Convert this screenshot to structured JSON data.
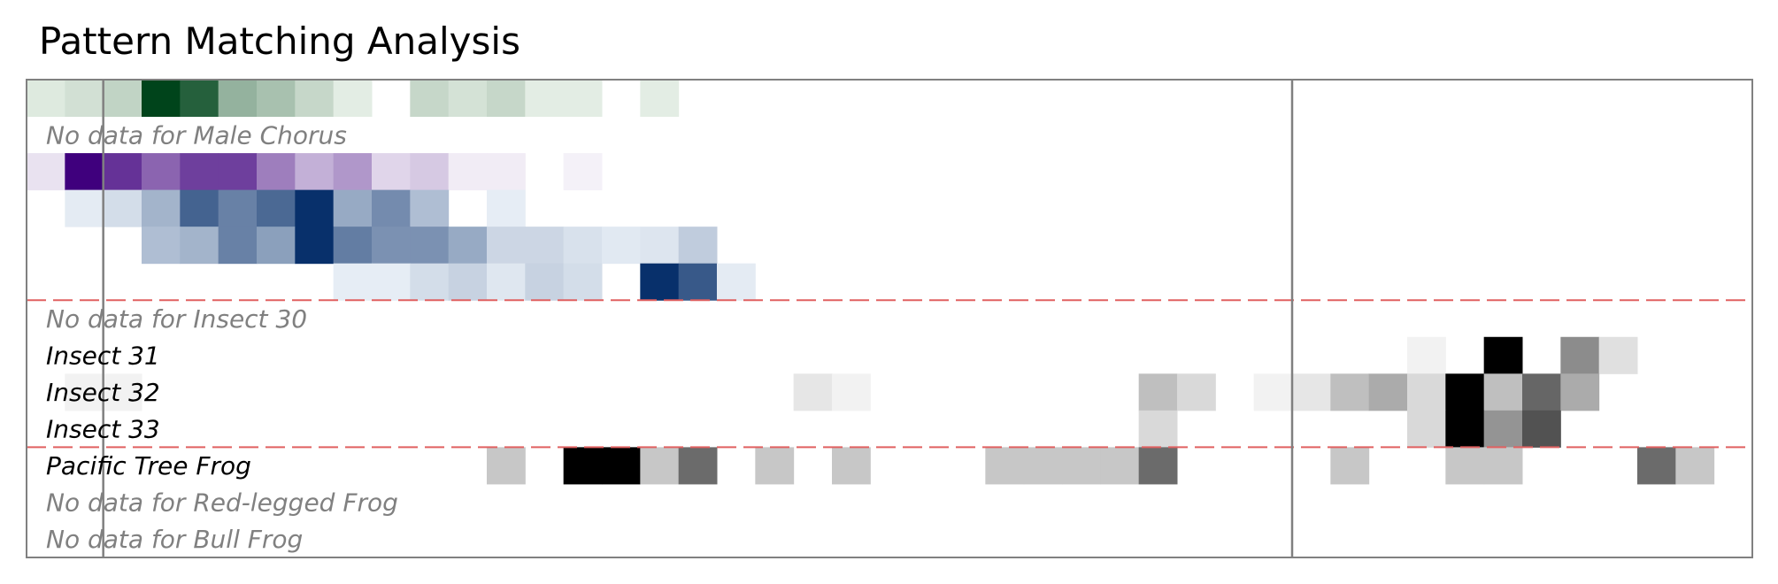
{
  "chart_data": {
    "type": "heatmap",
    "title": "Pattern Matching Analysis",
    "n_columns": 45,
    "grid": false,
    "rows": [
      {
        "label": "",
        "has_data": true,
        "colormap": "green",
        "values": [
          0.1,
          0.15,
          0.22,
          1,
          0.85,
          0.4,
          0.32,
          0.2,
          0.08,
          0,
          0.2,
          0.14,
          0.2,
          0.08,
          0.08,
          0,
          0.08,
          0,
          0,
          0,
          0,
          0,
          0,
          0,
          0,
          0,
          0,
          0,
          0,
          0,
          0,
          0,
          0,
          0,
          0,
          0,
          0,
          0,
          0,
          0,
          0,
          0,
          0,
          0,
          0
        ]
      },
      {
        "label": "No data for Male Chorus",
        "has_data": false,
        "colormap": "none",
        "values": []
      },
      {
        "label": "",
        "has_data": true,
        "colormap": "purple",
        "values": [
          0.1,
          1,
          0.8,
          0.6,
          0.75,
          0.75,
          0.5,
          0.3,
          0.4,
          0.15,
          0.2,
          0.06,
          0.06,
          0,
          0.04,
          0,
          0,
          0,
          0,
          0,
          0,
          0,
          0,
          0,
          0,
          0,
          0,
          0,
          0,
          0,
          0,
          0,
          0,
          0,
          0,
          0,
          0,
          0,
          0,
          0,
          0,
          0,
          0,
          0,
          0
        ]
      },
      {
        "label": "",
        "has_data": true,
        "colormap": "blue",
        "values": [
          0,
          0.08,
          0.15,
          0.35,
          0.75,
          0.6,
          0.72,
          1,
          0.4,
          0.55,
          0.3,
          0,
          0.07,
          0,
          0,
          0,
          0,
          0,
          0,
          0,
          0,
          0,
          0,
          0,
          0,
          0,
          0,
          0,
          0,
          0,
          0,
          0,
          0,
          0,
          0,
          0,
          0,
          0,
          0,
          0,
          0,
          0,
          0,
          0,
          0
        ]
      },
      {
        "label": "",
        "has_data": true,
        "colormap": "blue",
        "values": [
          0,
          0,
          0,
          0.3,
          0.35,
          0.6,
          0.45,
          1,
          0.62,
          0.52,
          0.52,
          0.4,
          0.18,
          0.18,
          0.13,
          0.09,
          0.11,
          0.23,
          0,
          0,
          0,
          0,
          0,
          0,
          0,
          0,
          0,
          0,
          0,
          0,
          0,
          0,
          0,
          0,
          0,
          0,
          0,
          0,
          0,
          0,
          0,
          0,
          0,
          0,
          0
        ]
      },
      {
        "label": "",
        "has_data": true,
        "colormap": "blue",
        "values": [
          0,
          0,
          0,
          0,
          0,
          0,
          0,
          0,
          0.07,
          0.07,
          0.15,
          0.2,
          0.1,
          0.2,
          0.15,
          0,
          1,
          0.8,
          0.08,
          0,
          0,
          0,
          0,
          0,
          0,
          0,
          0,
          0,
          0,
          0,
          0,
          0,
          0,
          0,
          0,
          0,
          0,
          0,
          0,
          0,
          0,
          0,
          0,
          0,
          0
        ]
      },
      {
        "label": "No data for Insect 30",
        "has_data": false,
        "colormap": "none",
        "values": []
      },
      {
        "label": "Insect 31",
        "has_data": true,
        "colormap": "gray",
        "values": [
          0,
          0,
          0,
          0,
          0,
          0,
          0,
          0,
          0,
          0,
          0,
          0,
          0,
          0,
          0,
          0,
          0,
          0,
          0,
          0,
          0,
          0,
          0,
          0,
          0,
          0,
          0,
          0,
          0,
          0,
          0,
          0,
          0,
          0,
          0,
          0,
          0.05,
          0,
          1,
          0,
          0.45,
          0.12,
          0,
          0,
          0
        ]
      },
      {
        "label": "Insect 32",
        "has_data": true,
        "colormap": "gray",
        "values": [
          0,
          0.05,
          0.05,
          0,
          0,
          0,
          0,
          0,
          0,
          0,
          0,
          0,
          0,
          0,
          0,
          0,
          0,
          0,
          0,
          0,
          0.1,
          0.05,
          0,
          0,
          0,
          0,
          0,
          0,
          0,
          0.25,
          0.15,
          0,
          0.05,
          0.1,
          0.25,
          0.33,
          0.15,
          1,
          0.25,
          0.6,
          0.33,
          0,
          0,
          0,
          0
        ]
      },
      {
        "label": "Insect 33",
        "has_data": true,
        "colormap": "gray",
        "values": [
          0,
          0,
          0,
          0,
          0,
          0,
          0,
          0,
          0,
          0,
          0,
          0,
          0,
          0,
          0,
          0,
          0,
          0,
          0,
          0,
          0,
          0,
          0,
          0,
          0,
          0,
          0,
          0,
          0,
          0.15,
          0,
          0,
          0,
          0,
          0,
          0,
          0.15,
          1,
          0.42,
          0.68,
          0,
          0,
          0,
          0,
          0
        ]
      },
      {
        "label": "Pacific Tree Frog",
        "has_data": true,
        "colormap": "gray",
        "values": [
          0,
          0,
          0,
          0,
          0,
          0,
          0,
          0,
          0,
          0,
          0,
          0,
          0.22,
          0,
          1,
          1,
          0.22,
          0.58,
          0,
          0.22,
          0,
          0.22,
          0,
          0,
          0,
          0.22,
          0.22,
          0.22,
          0.22,
          0.58,
          0,
          0,
          0,
          0,
          0.22,
          0,
          0,
          0.22,
          0.22,
          0,
          0,
          0,
          0.58,
          0.22,
          0
        ]
      },
      {
        "label": "No data for Red-legged Frog",
        "has_data": false,
        "colormap": "none",
        "values": []
      },
      {
        "label": "No data for Bull Frog",
        "has_data": false,
        "colormap": "none",
        "values": []
      }
    ],
    "vertical_markers_at_column": [
      2,
      33
    ],
    "group_dividers_after_row": [
      5,
      9
    ],
    "colors": {
      "no_data_label": "#808080",
      "label": "#000000",
      "divider": "#e06060",
      "frame": "#808080",
      "marker": "#808080"
    }
  }
}
